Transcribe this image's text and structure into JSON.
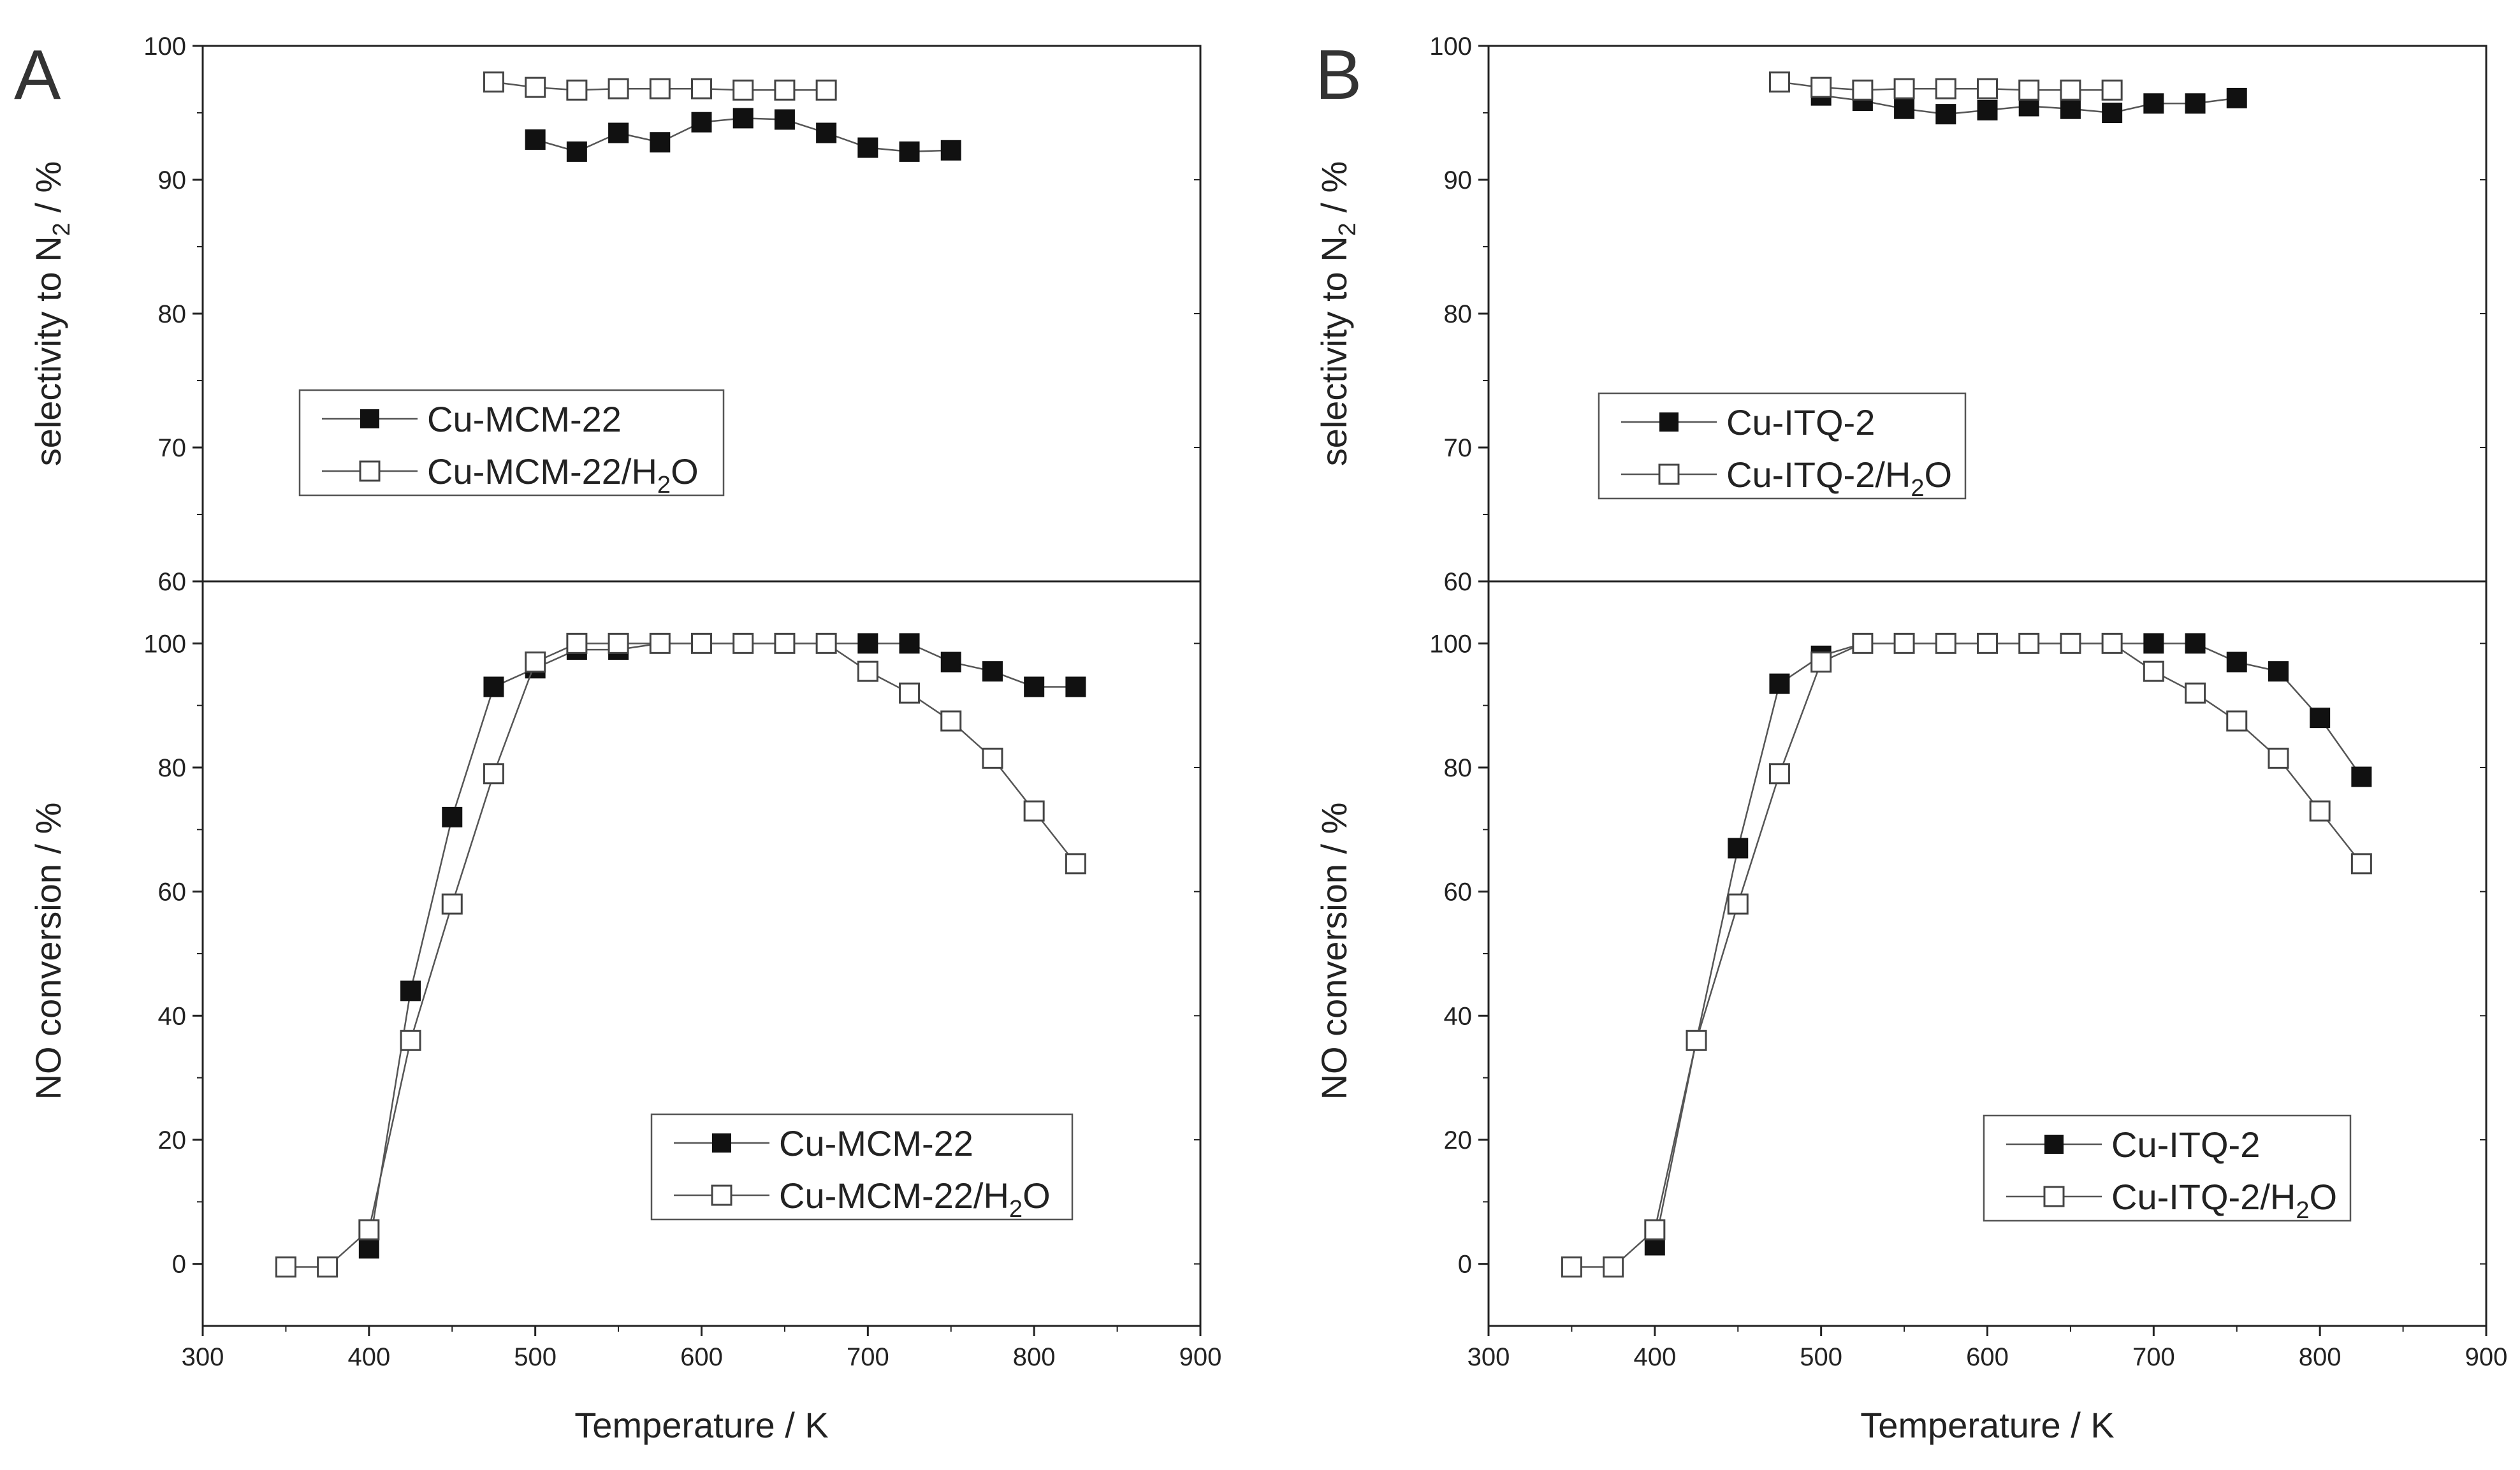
{
  "chart_data": [
    {
      "type": "scatter",
      "panel": "A",
      "subplot": "top",
      "ylabel": "selectivity to N",
      "ylabel_sub": "2",
      "ylabel_tail": " / %",
      "xlim": [
        300,
        900
      ],
      "ylim": [
        60,
        100
      ],
      "yticks": [
        "60",
        "70",
        "80",
        "90",
        "100"
      ],
      "legend": "left",
      "series": [
        {
          "name": "Cu-MCM-22",
          "marker": "filled",
          "x": [
            500,
            525,
            550,
            575,
            600,
            625,
            650,
            675,
            700,
            725,
            750
          ],
          "y": [
            93,
            92.1,
            93.5,
            92.8,
            94.3,
            94.6,
            94.5,
            93.5,
            92.4,
            92.1,
            92.2
          ]
        },
        {
          "name": "Cu-MCM-22/H2O",
          "name_main": "Cu-MCM-22/H",
          "name_sub": "2",
          "name_tail": "O",
          "marker": "open",
          "x": [
            475,
            500,
            525,
            550,
            575,
            600,
            625,
            650,
            675
          ],
          "y": [
            97.3,
            96.9,
            96.7,
            96.8,
            96.8,
            96.8,
            96.7,
            96.7,
            96.7
          ]
        }
      ]
    },
    {
      "type": "scatter",
      "panel": "A",
      "subplot": "bottom",
      "ylabel": "NO conversion / %",
      "xlabel": "Temperature / K",
      "xlim": [
        300,
        900
      ],
      "ylim": [
        -10,
        110
      ],
      "xticks": [
        "300",
        "400",
        "500",
        "600",
        "700",
        "800",
        "900"
      ],
      "yticks": [
        "0",
        "20",
        "40",
        "60",
        "80",
        "100"
      ],
      "legend": "bottom-right",
      "series": [
        {
          "name": "Cu-MCM-22",
          "marker": "filled",
          "x": [
            400,
            425,
            450,
            475,
            500,
            525,
            550,
            575,
            600,
            625,
            650,
            675,
            700,
            725,
            750,
            775,
            800,
            825
          ],
          "y": [
            2.5,
            44,
            72,
            93,
            96,
            99,
            99,
            100,
            100,
            100,
            100,
            100,
            100,
            100,
            97,
            95.5,
            93,
            93
          ]
        },
        {
          "name": "Cu-MCM-22/H2O",
          "name_main": "Cu-MCM-22/H",
          "name_sub": "2",
          "name_tail": "O",
          "marker": "open",
          "x": [
            350,
            375,
            400,
            425,
            450,
            475,
            500,
            525,
            550,
            575,
            600,
            625,
            650,
            675,
            700,
            725,
            750,
            775,
            800,
            825
          ],
          "y": [
            -0.5,
            -0.5,
            5.5,
            36,
            58,
            79,
            97,
            100,
            100,
            100,
            100,
            100,
            100,
            100,
            95.5,
            92,
            87.5,
            81.5,
            73,
            64.5
          ]
        }
      ]
    },
    {
      "type": "scatter",
      "panel": "B",
      "subplot": "top",
      "ylabel": "selectivity to N",
      "ylabel_sub": "2",
      "ylabel_tail": " / %",
      "xlim": [
        300,
        900
      ],
      "ylim": [
        60,
        100
      ],
      "yticks": [
        "60",
        "70",
        "80",
        "90",
        "100"
      ],
      "legend": "left",
      "series": [
        {
          "name": "Cu-ITQ-2",
          "marker": "filled",
          "x": [
            500,
            525,
            550,
            575,
            600,
            625,
            650,
            675,
            700,
            725,
            750
          ],
          "y": [
            96.3,
            95.9,
            95.3,
            94.9,
            95.2,
            95.5,
            95.3,
            95,
            95.7,
            95.7,
            96.1
          ]
        },
        {
          "name": "Cu-ITQ-2/H2O",
          "name_main": "Cu-ITQ-2/H",
          "name_sub": "2",
          "name_tail": "O",
          "marker": "open",
          "x": [
            475,
            500,
            525,
            550,
            575,
            600,
            625,
            650,
            675
          ],
          "y": [
            97.3,
            96.9,
            96.7,
            96.8,
            96.8,
            96.8,
            96.7,
            96.7,
            96.7
          ]
        }
      ]
    },
    {
      "type": "scatter",
      "panel": "B",
      "subplot": "bottom",
      "ylabel": "NO conversion / %",
      "xlabel": "Temperature / K",
      "xlim": [
        300,
        900
      ],
      "ylim": [
        -10,
        110
      ],
      "xticks": [
        "300",
        "400",
        "500",
        "600",
        "700",
        "800",
        "900"
      ],
      "yticks": [
        "0",
        "20",
        "40",
        "60",
        "80",
        "100"
      ],
      "legend": "bottom-right",
      "series": [
        {
          "name": "Cu-ITQ-2",
          "marker": "filled",
          "x": [
            400,
            425,
            450,
            475,
            500,
            525,
            550,
            575,
            600,
            625,
            650,
            675,
            700,
            725,
            750,
            775,
            800,
            825
          ],
          "y": [
            3,
            36,
            67,
            93.5,
            98,
            100,
            100,
            100,
            100,
            100,
            100,
            100,
            100,
            100,
            97,
            95.5,
            88,
            78.5
          ]
        },
        {
          "name": "Cu-ITQ-2/H2O",
          "name_main": "Cu-ITQ-2/H",
          "name_sub": "2",
          "name_tail": "O",
          "marker": "open",
          "x": [
            350,
            375,
            400,
            425,
            450,
            475,
            500,
            525,
            550,
            575,
            600,
            625,
            650,
            675,
            700,
            725,
            750,
            775,
            800,
            825
          ],
          "y": [
            -0.5,
            -0.5,
            5.5,
            36,
            58,
            79,
            97,
            100,
            100,
            100,
            100,
            100,
            100,
            100,
            95.5,
            92,
            87.5,
            81.5,
            73,
            64.5
          ]
        }
      ]
    }
  ],
  "colors": {
    "axis": "#222222",
    "line": "#555555",
    "marker_filled": "#111111",
    "marker_open_fill": "#ffffff"
  }
}
